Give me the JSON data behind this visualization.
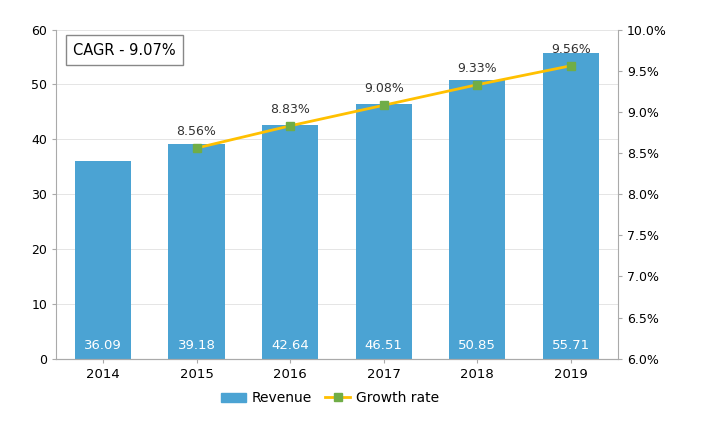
{
  "years": [
    2014,
    2015,
    2016,
    2017,
    2018,
    2019
  ],
  "revenues": [
    36.09,
    39.18,
    42.64,
    46.51,
    50.85,
    55.71
  ],
  "growth_rates": [
    null,
    8.56,
    8.83,
    9.08,
    9.33,
    9.56
  ],
  "growth_labels": [
    "",
    "8.56%",
    "8.83%",
    "9.08%",
    "9.33%",
    "9.56%"
  ],
  "bar_color": "#4BA3D3",
  "line_color": "#FFC000",
  "marker_color": "#70AD47",
  "marker_face": "#70AD47",
  "bar_label_color": "white",
  "bar_label_fontsize": 9.5,
  "growth_label_fontsize": 9,
  "ylim_left": [
    0,
    60
  ],
  "ylim_right": [
    6.0,
    10.0
  ],
  "yticks_left": [
    0,
    10,
    20,
    30,
    40,
    50,
    60
  ],
  "yticks_right": [
    6.0,
    6.5,
    7.0,
    7.5,
    8.0,
    8.5,
    9.0,
    9.5,
    10.0
  ],
  "cagr_text": "CAGR - 9.07%",
  "legend_revenue": "Revenue",
  "legend_growth": "Growth rate",
  "bg_color": "#FFFFFF",
  "bar_width": 0.6,
  "figsize": [
    7.02,
    4.22
  ],
  "dpi": 100
}
